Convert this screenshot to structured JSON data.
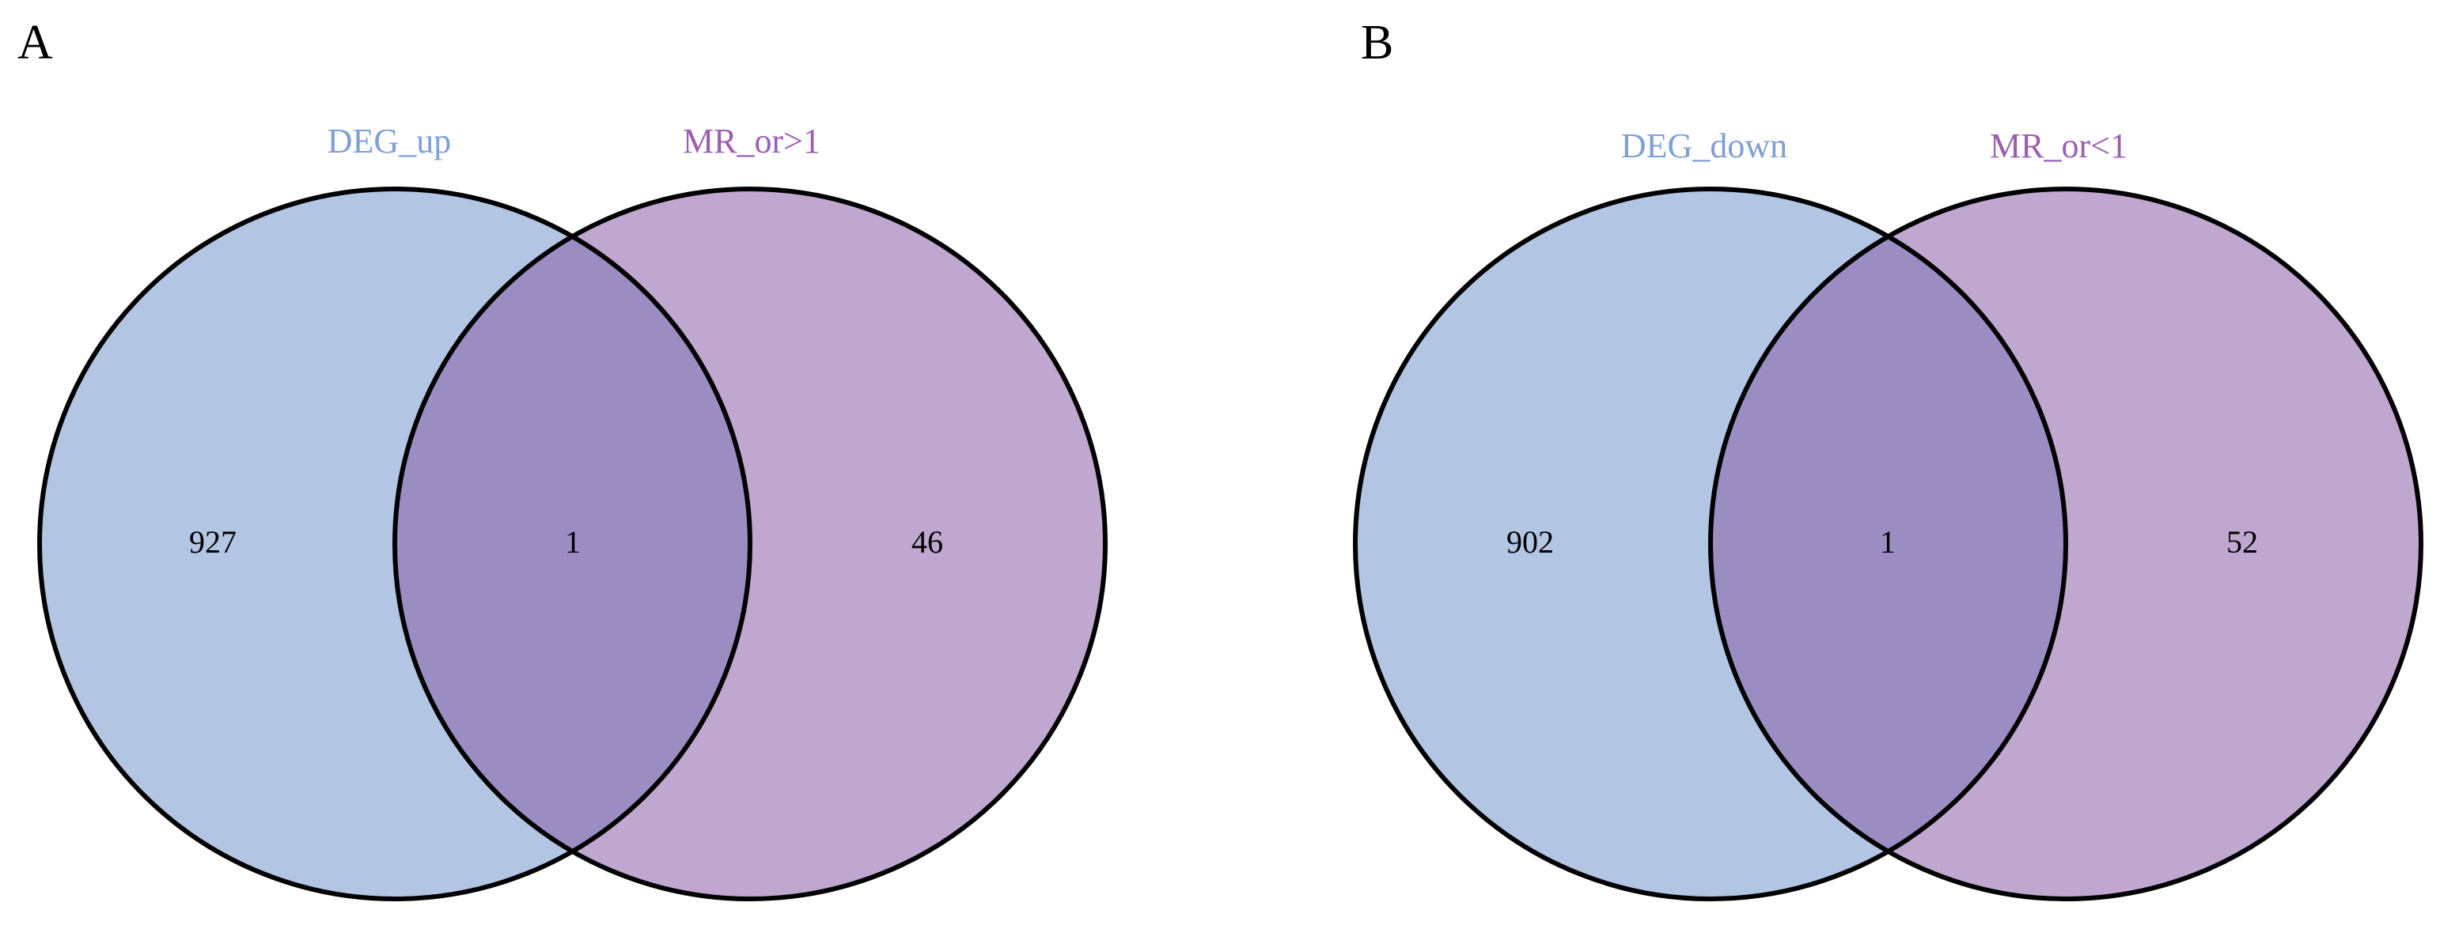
{
  "panels": [
    {
      "letter": "A",
      "sets": [
        "DEG_up",
        "MR_or>1"
      ],
      "counts": [
        927,
        1,
        46
      ]
    },
    {
      "letter": "B",
      "sets": [
        "DEG_down",
        "MR_or<1"
      ],
      "counts": [
        902,
        1,
        52
      ]
    }
  ]
}
